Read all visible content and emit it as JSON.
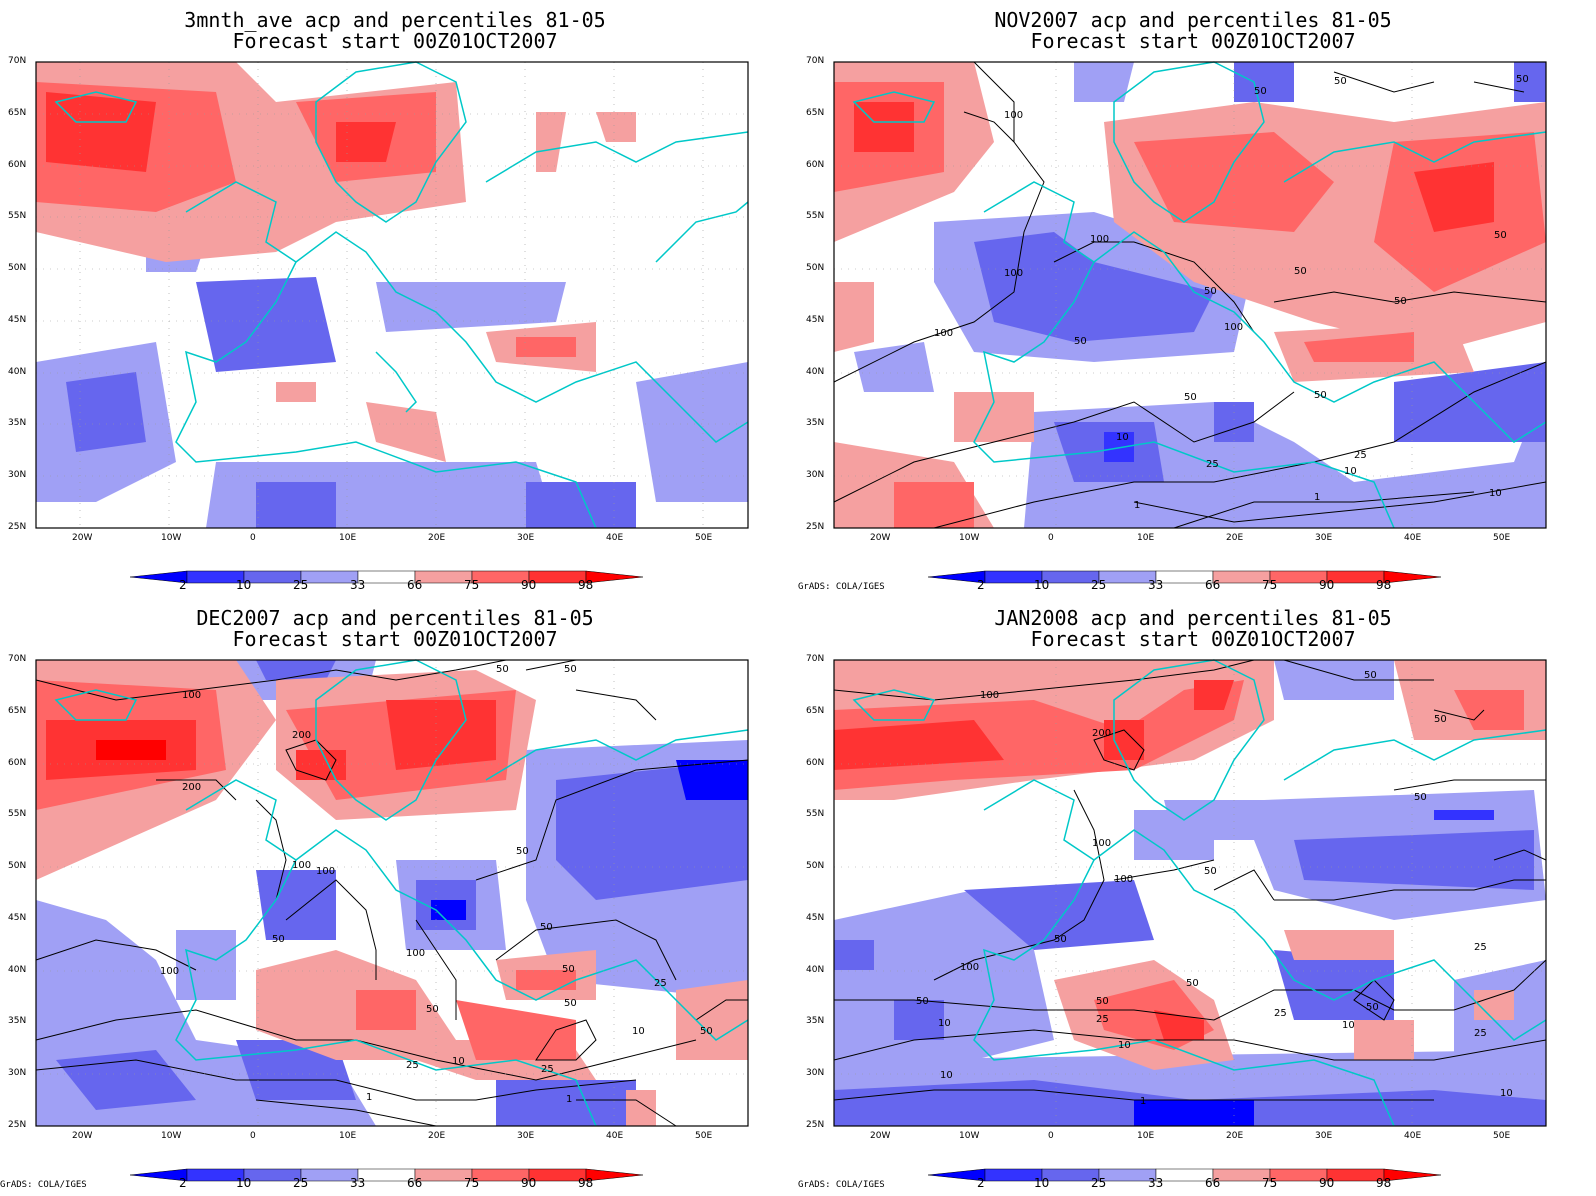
{
  "panels": [
    {
      "title1": "3mnth_ave acp and percentiles 81-05",
      "title2": "Forecast start 00Z01OCT2007",
      "credit": ""
    },
    {
      "title1": "NOV2007 acp and percentiles 81-05",
      "title2": "Forecast start 00Z01OCT2007",
      "credit": "GrADS: COLA/IGES"
    },
    {
      "title1": "DEC2007 acp and percentiles 81-05",
      "title2": "Forecast start 00Z01OCT2007",
      "credit": "GrADS: COLA/IGES"
    },
    {
      "title1": "JAN2008 acp and percentiles 81-05",
      "title2": "Forecast start 00Z01OCT2007",
      "credit": "GrADS: COLA/IGES"
    }
  ],
  "axes": {
    "lat_labels": [
      "70N",
      "65N",
      "60N",
      "55N",
      "50N",
      "45N",
      "40N",
      "35N",
      "30N",
      "25N"
    ],
    "lon_labels": [
      "20W",
      "10W",
      "0",
      "10E",
      "20E",
      "30E",
      "40E",
      "50E"
    ]
  },
  "colorbar": {
    "labels": [
      "2",
      "10",
      "25",
      "33",
      "66",
      "75",
      "90",
      "98"
    ],
    "colors": [
      "#0000ff",
      "#3333ff",
      "#6666ee",
      "#a0a0f5",
      "#ffffff",
      "#f5a0a0",
      "#ff6666",
      "#ff3333",
      "#ff0000"
    ]
  },
  "contour_labels": {
    "panel2": [
      "100",
      "100",
      "100",
      "100",
      "50",
      "50",
      "50",
      "50",
      "50",
      "50",
      "50",
      "50",
      "50",
      "50",
      "10",
      "10",
      "25",
      "25",
      "10",
      "1",
      "1",
      "100"
    ],
    "panel3": [
      "100",
      "200",
      "200",
      "100",
      "100",
      "50",
      "50",
      "100",
      "50",
      "50",
      "50",
      "50",
      "25",
      "25",
      "10",
      "10",
      "1",
      "1",
      "50",
      "50",
      "100",
      "50",
      "25"
    ],
    "panel4": [
      "100",
      "200",
      "100",
      "100",
      "50",
      "50",
      "50",
      "25",
      "10",
      "10",
      "50",
      "50",
      "50",
      "25",
      "25",
      "25",
      "10",
      "10",
      "1",
      "50",
      "50",
      "100",
      "50",
      "10"
    ]
  },
  "colors": {
    "coast": "#00c8c8",
    "contour": "#000000",
    "frame": "#000000"
  }
}
